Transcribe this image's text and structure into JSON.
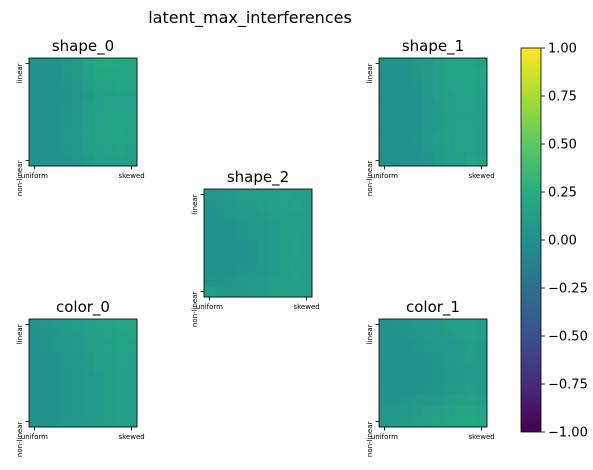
{
  "chart_data": [
    {
      "type": "heatmap",
      "title": "shape_0",
      "xticks": [
        "uniform",
        "skewed"
      ],
      "yticks": [
        "linear",
        "non-linear"
      ],
      "z": [
        [
          0.02,
          0.03,
          0.03,
          0.05,
          0.08,
          0.15,
          0.2,
          0.22,
          0.21,
          0.2
        ],
        [
          0.01,
          0.02,
          0.03,
          0.05,
          0.08,
          0.14,
          0.18,
          0.2,
          0.2,
          0.19
        ],
        [
          0.02,
          0.02,
          0.03,
          0.04,
          0.06,
          0.11,
          0.14,
          0.17,
          0.18,
          0.17
        ],
        [
          0.01,
          0.02,
          0.02,
          0.03,
          0.05,
          0.09,
          0.12,
          0.14,
          0.15,
          0.14
        ],
        [
          0.02,
          0.02,
          0.03,
          0.04,
          0.06,
          0.1,
          0.13,
          0.15,
          0.15,
          0.14
        ],
        [
          0.02,
          0.02,
          0.03,
          0.04,
          0.06,
          0.11,
          0.14,
          0.16,
          0.17,
          0.16
        ],
        [
          0.02,
          0.03,
          0.03,
          0.05,
          0.07,
          0.12,
          0.15,
          0.17,
          0.18,
          0.16
        ],
        [
          0.02,
          0.03,
          0.04,
          0.05,
          0.07,
          0.11,
          0.15,
          0.16,
          0.16,
          0.15
        ],
        [
          0.02,
          0.02,
          0.03,
          0.04,
          0.06,
          0.1,
          0.12,
          0.14,
          0.15,
          0.13
        ],
        [
          0.02,
          0.02,
          0.02,
          0.03,
          0.05,
          0.08,
          0.1,
          0.11,
          0.12,
          0.1
        ]
      ]
    },
    {
      "type": "heatmap",
      "title": "shape_1",
      "xticks": [
        "uniform",
        "skewed"
      ],
      "yticks": [
        "linear",
        "non-linear"
      ],
      "z": [
        [
          0.01,
          0.02,
          0.03,
          0.05,
          0.07,
          0.12,
          0.15,
          0.16,
          0.16,
          0.14
        ],
        [
          0.01,
          0.02,
          0.03,
          0.05,
          0.08,
          0.12,
          0.16,
          0.18,
          0.18,
          0.16
        ],
        [
          0.01,
          0.02,
          0.03,
          0.04,
          0.07,
          0.11,
          0.15,
          0.17,
          0.17,
          0.15
        ],
        [
          0.01,
          0.02,
          0.02,
          0.03,
          0.06,
          0.1,
          0.13,
          0.15,
          0.16,
          0.14
        ],
        [
          0.01,
          0.02,
          0.02,
          0.03,
          0.05,
          0.09,
          0.12,
          0.14,
          0.15,
          0.13
        ],
        [
          0.01,
          0.01,
          0.02,
          0.03,
          0.05,
          0.08,
          0.1,
          0.12,
          0.13,
          0.12
        ],
        [
          0.01,
          0.02,
          0.02,
          0.03,
          0.05,
          0.09,
          0.12,
          0.14,
          0.14,
          0.12
        ],
        [
          0.01,
          0.02,
          0.02,
          0.04,
          0.06,
          0.1,
          0.13,
          0.15,
          0.15,
          0.13
        ],
        [
          0.01,
          0.02,
          0.02,
          0.03,
          0.05,
          0.09,
          0.11,
          0.14,
          0.15,
          0.12
        ],
        [
          0.01,
          0.01,
          0.02,
          0.03,
          0.04,
          0.08,
          0.1,
          0.13,
          0.18,
          0.15
        ]
      ]
    },
    {
      "type": "heatmap",
      "title": "shape_2",
      "xticks": [
        "uniform",
        "skewed"
      ],
      "yticks": [
        "linear",
        "non-linear"
      ],
      "z": [
        [
          0.05,
          0.06,
          0.08,
          0.1,
          0.11,
          0.12,
          0.13,
          0.14,
          0.13,
          0.12
        ],
        [
          0.04,
          0.05,
          0.07,
          0.08,
          0.09,
          0.1,
          0.12,
          0.14,
          0.15,
          0.13
        ],
        [
          0.03,
          0.04,
          0.05,
          0.06,
          0.07,
          0.08,
          0.1,
          0.12,
          0.13,
          0.12
        ],
        [
          0.02,
          0.03,
          0.03,
          0.04,
          0.05,
          0.06,
          0.08,
          0.1,
          0.11,
          0.1
        ],
        [
          0.02,
          0.03,
          0.03,
          0.04,
          0.05,
          0.07,
          0.09,
          0.11,
          0.12,
          0.1
        ],
        [
          0.01,
          0.02,
          0.03,
          0.03,
          0.04,
          0.06,
          0.08,
          0.1,
          0.12,
          0.1
        ],
        [
          0.02,
          0.02,
          0.03,
          0.03,
          0.04,
          0.06,
          0.08,
          0.1,
          0.13,
          0.11
        ],
        [
          0.02,
          0.03,
          0.03,
          0.04,
          0.05,
          0.07,
          0.09,
          0.11,
          0.14,
          0.12
        ],
        [
          0.04,
          0.04,
          0.05,
          0.06,
          0.07,
          0.08,
          0.1,
          0.12,
          0.14,
          0.13
        ],
        [
          0.1,
          0.06,
          0.06,
          0.07,
          0.08,
          0.09,
          0.1,
          0.12,
          0.13,
          0.12
        ]
      ]
    },
    {
      "type": "heatmap",
      "title": "color_0",
      "xticks": [
        "uniform",
        "skewed"
      ],
      "yticks": [
        "linear",
        "non-linear"
      ],
      "z": [
        [
          0.04,
          0.05,
          0.06,
          0.08,
          0.1,
          0.12,
          0.14,
          0.16,
          0.19,
          0.18
        ],
        [
          0.03,
          0.04,
          0.05,
          0.07,
          0.09,
          0.11,
          0.13,
          0.15,
          0.17,
          0.16
        ],
        [
          0.03,
          0.04,
          0.05,
          0.06,
          0.08,
          0.1,
          0.12,
          0.14,
          0.16,
          0.15
        ],
        [
          0.02,
          0.03,
          0.04,
          0.05,
          0.06,
          0.08,
          0.1,
          0.12,
          0.14,
          0.13
        ],
        [
          0.02,
          0.03,
          0.04,
          0.05,
          0.06,
          0.08,
          0.1,
          0.12,
          0.14,
          0.13
        ],
        [
          0.01,
          0.02,
          0.03,
          0.04,
          0.05,
          0.07,
          0.09,
          0.11,
          0.13,
          0.12
        ],
        [
          0.01,
          0.02,
          0.03,
          0.04,
          0.05,
          0.07,
          0.09,
          0.11,
          0.12,
          0.11
        ],
        [
          0.02,
          0.02,
          0.03,
          0.04,
          0.05,
          0.06,
          0.08,
          0.1,
          0.12,
          0.11
        ],
        [
          0.02,
          0.03,
          0.03,
          0.04,
          0.05,
          0.07,
          0.09,
          0.1,
          0.13,
          0.12
        ],
        [
          0.03,
          0.03,
          0.04,
          0.05,
          0.06,
          0.07,
          0.09,
          0.1,
          0.12,
          0.11
        ]
      ]
    },
    {
      "type": "heatmap",
      "title": "color_1",
      "xticks": [
        "uniform",
        "skewed"
      ],
      "yticks": [
        "linear",
        "non-linear"
      ],
      "z": [
        [
          0.03,
          0.04,
          0.05,
          0.06,
          0.07,
          0.08,
          0.1,
          0.12,
          0.13,
          0.11
        ],
        [
          0.03,
          0.03,
          0.04,
          0.05,
          0.06,
          0.07,
          0.09,
          0.11,
          0.12,
          0.1
        ],
        [
          0.02,
          0.03,
          0.03,
          0.04,
          0.05,
          0.06,
          0.07,
          0.09,
          0.11,
          0.09
        ],
        [
          0.02,
          0.02,
          0.03,
          0.03,
          0.04,
          0.05,
          0.06,
          0.08,
          0.1,
          0.09
        ],
        [
          0.01,
          0.02,
          0.02,
          0.03,
          0.03,
          0.04,
          0.06,
          0.07,
          0.09,
          0.08
        ],
        [
          0.01,
          0.02,
          0.02,
          0.02,
          0.03,
          0.04,
          0.05,
          0.07,
          0.09,
          0.08
        ],
        [
          0.02,
          0.02,
          0.03,
          0.03,
          0.04,
          0.05,
          0.06,
          0.08,
          0.1,
          0.09
        ],
        [
          0.03,
          0.04,
          0.05,
          0.06,
          0.07,
          0.08,
          0.1,
          0.12,
          0.14,
          0.13
        ],
        [
          0.05,
          0.06,
          0.07,
          0.09,
          0.1,
          0.12,
          0.14,
          0.16,
          0.18,
          0.17
        ],
        [
          0.06,
          0.07,
          0.09,
          0.1,
          0.12,
          0.14,
          0.16,
          0.19,
          0.21,
          0.2
        ]
      ]
    }
  ],
  "figure": {
    "suptitle": "latent_max_interferences"
  },
  "colorbar": {
    "colormap": "viridis",
    "range": [
      -1.0,
      1.0
    ],
    "ticks": [
      "1.00",
      "0.75",
      "0.50",
      "0.25",
      "0.00",
      "−0.25",
      "−0.50",
      "−0.75",
      "−1.00"
    ]
  }
}
